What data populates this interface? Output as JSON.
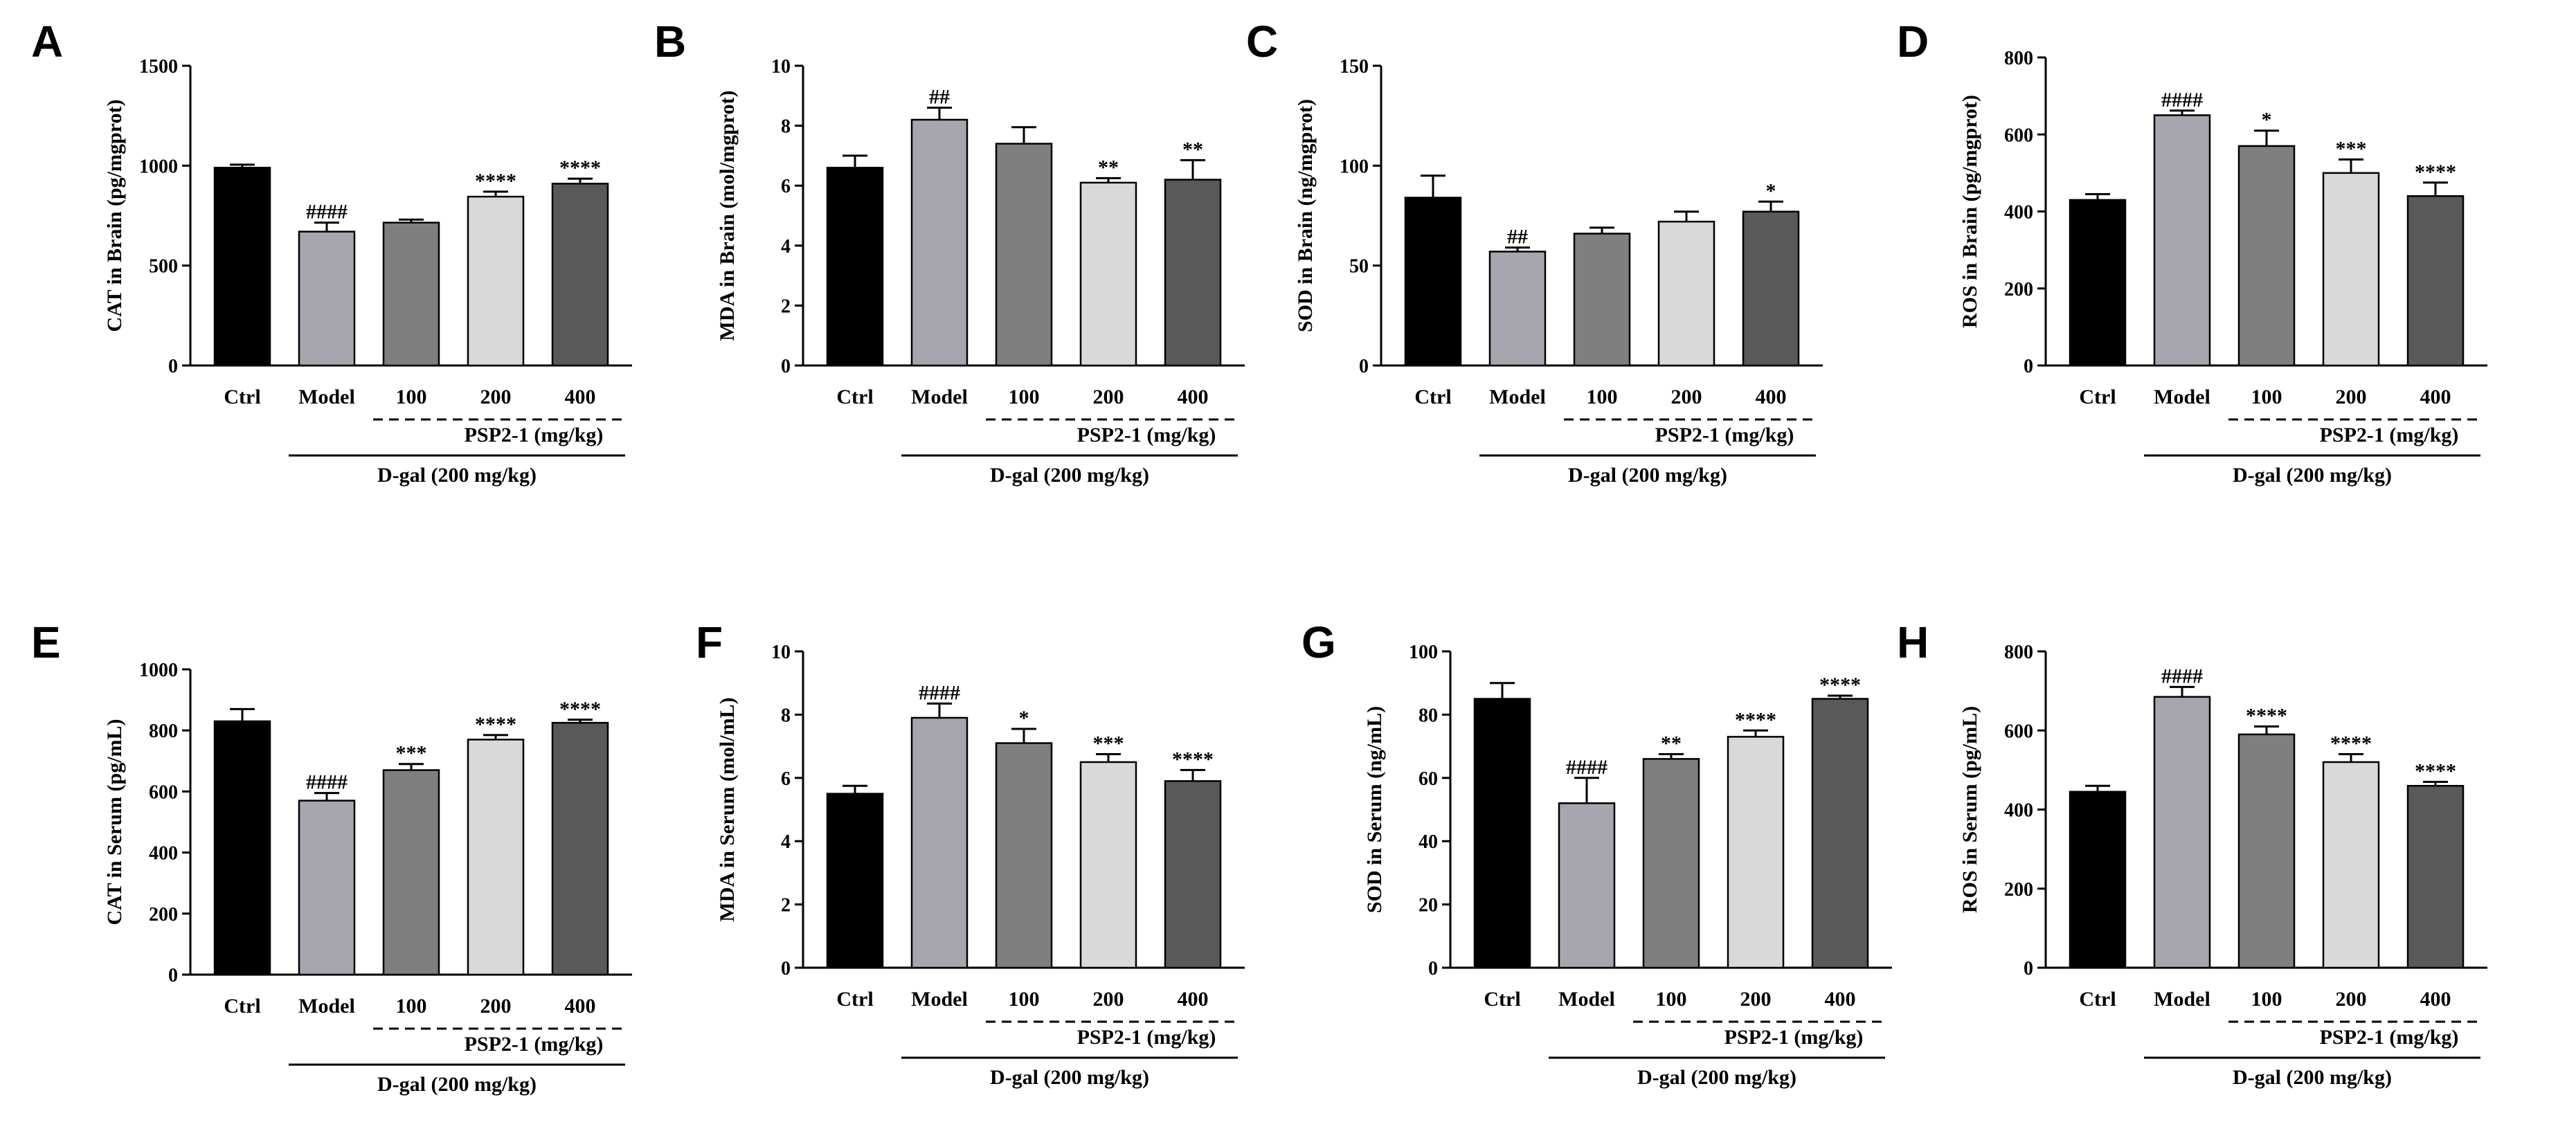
{
  "colors": {
    "Ctrl": "#000000",
    "Model": "#a7a6ae",
    "100": "#7f7f7f",
    "200": "#d9d9d9",
    "400": "#595959"
  },
  "chart_data": [
    {
      "panel": "A",
      "type": "bar",
      "ylabel": "CAT in Brain (pg/mgprot)",
      "ylim": [
        0,
        1500
      ],
      "yticks": [
        "0",
        "500",
        "1000",
        "1500"
      ],
      "categories": [
        "Ctrl",
        "Model",
        "100",
        "200",
        "400"
      ],
      "values": [
        990,
        670,
        715,
        845,
        910
      ],
      "errors": [
        15,
        45,
        15,
        25,
        25
      ],
      "sig": [
        "",
        "####",
        "",
        "****",
        "****"
      ],
      "bracket_label": "PSP2-1 (mg/kg)",
      "group_label": "D-gal (200 mg/kg)"
    },
    {
      "panel": "B",
      "type": "bar",
      "ylabel": "MDA in Brain (mol/mgprot)",
      "ylim": [
        0,
        10
      ],
      "yticks": [
        "0",
        "2",
        "4",
        "6",
        "8",
        "10"
      ],
      "categories": [
        "Ctrl",
        "Model",
        "100",
        "200",
        "400"
      ],
      "values": [
        6.6,
        8.2,
        7.4,
        6.1,
        6.2
      ],
      "errors": [
        0.4,
        0.4,
        0.55,
        0.15,
        0.65
      ],
      "sig": [
        "",
        "##",
        "",
        "**",
        "**"
      ],
      "bracket_label": "PSP2-1 (mg/kg)",
      "group_label": "D-gal (200 mg/kg)"
    },
    {
      "panel": "C",
      "type": "bar",
      "ylabel": "SOD in Brain (ng/mgprot)",
      "ylim": [
        0,
        150
      ],
      "yticks": [
        "0",
        "50",
        "100",
        "150"
      ],
      "categories": [
        "Ctrl",
        "Model",
        "100",
        "200",
        "400"
      ],
      "values": [
        84,
        57,
        66,
        72,
        77
      ],
      "errors": [
        11,
        2,
        3,
        5,
        5
      ],
      "sig": [
        "",
        "##",
        "",
        "",
        "*"
      ],
      "bracket_label": "PSP2-1 (mg/kg)",
      "group_label": "D-gal (200 mg/kg)"
    },
    {
      "panel": "D",
      "type": "bar",
      "ylabel": "ROS in Brain (pg/mgprot)",
      "ylim": [
        0,
        800
      ],
      "yticks": [
        "0",
        "200",
        "400",
        "600",
        "800"
      ],
      "categories": [
        "Ctrl",
        "Model",
        "100",
        "200",
        "400"
      ],
      "values": [
        430,
        650,
        570,
        500,
        440
      ],
      "errors": [
        15,
        12,
        40,
        35,
        35
      ],
      "sig": [
        "",
        "####",
        "*",
        "***",
        "****"
      ],
      "bracket_label": "PSP2-1 (mg/kg)",
      "group_label": "D-gal (200 mg/kg)"
    },
    {
      "panel": "E",
      "type": "bar",
      "ylabel": "CAT in Serum (pg/mL)",
      "ylim": [
        0,
        1000
      ],
      "yticks": [
        "0",
        "200",
        "400",
        "600",
        "800",
        "1000"
      ],
      "categories": [
        "Ctrl",
        "Model",
        "100",
        "200",
        "400"
      ],
      "values": [
        830,
        570,
        670,
        770,
        825
      ],
      "errors": [
        40,
        25,
        20,
        15,
        10
      ],
      "sig": [
        "",
        "####",
        "***",
        "****",
        "****"
      ],
      "bracket_label": "PSP2-1 (mg/kg)",
      "group_label": "D-gal (200 mg/kg)"
    },
    {
      "panel": "F",
      "type": "bar",
      "ylabel": "MDA in Serum (mol/mL)",
      "ylim": [
        0,
        10
      ],
      "yticks": [
        "0",
        "2",
        "4",
        "6",
        "8",
        "10"
      ],
      "categories": [
        "Ctrl",
        "Model",
        "100",
        "200",
        "400"
      ],
      "values": [
        5.5,
        7.9,
        7.1,
        6.5,
        5.9
      ],
      "errors": [
        0.25,
        0.45,
        0.45,
        0.25,
        0.35
      ],
      "sig": [
        "",
        "####",
        "*",
        "***",
        "****"
      ],
      "bracket_label": "PSP2-1 (mg/kg)",
      "group_label": "D-gal (200 mg/kg)"
    },
    {
      "panel": "G",
      "type": "bar",
      "ylabel": "SOD in Serum (ng/mL)",
      "ylim": [
        0,
        100
      ],
      "yticks": [
        "0",
        "20",
        "40",
        "60",
        "80",
        "100"
      ],
      "categories": [
        "Ctrl",
        "Model",
        "100",
        "200",
        "400"
      ],
      "values": [
        85,
        52,
        66,
        73,
        85
      ],
      "errors": [
        5,
        8,
        1.5,
        2,
        1
      ],
      "sig": [
        "",
        "####",
        "**",
        "****",
        "****"
      ],
      "bracket_label": "PSP2-1 (mg/kg)",
      "group_label": "D-gal (200 mg/kg)"
    },
    {
      "panel": "H",
      "type": "bar",
      "ylabel": "ROS in Serum (pg/mL)",
      "ylim": [
        0,
        800
      ],
      "yticks": [
        "0",
        "200",
        "400",
        "600",
        "800"
      ],
      "categories": [
        "Ctrl",
        "Model",
        "100",
        "200",
        "400"
      ],
      "values": [
        445,
        685,
        590,
        520,
        460
      ],
      "errors": [
        15,
        25,
        20,
        20,
        10
      ],
      "sig": [
        "",
        "####",
        "****",
        "****",
        "****"
      ],
      "bracket_label": "PSP2-1 (mg/kg)",
      "group_label": "D-gal (200 mg/kg)"
    }
  ]
}
